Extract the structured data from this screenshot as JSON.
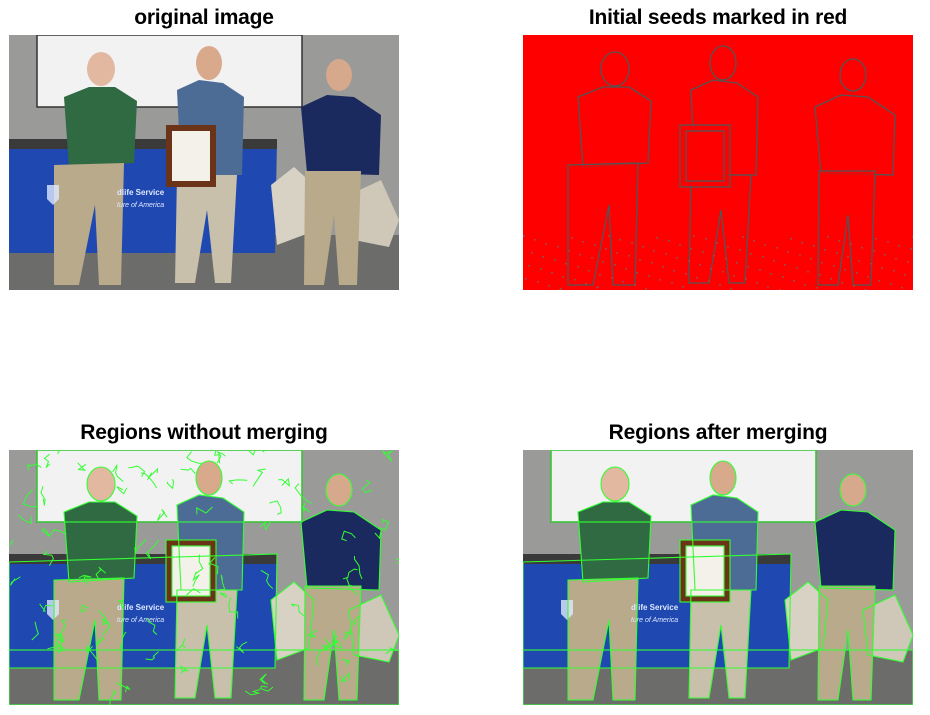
{
  "panels": [
    {
      "title": "original image"
    },
    {
      "title": "Initial seeds marked in red"
    },
    {
      "title": "Regions without merging"
    },
    {
      "title": "Regions after merging"
    }
  ],
  "scene": {
    "banner_text_1": "dlife Service",
    "banner_text_2": "ture of America"
  },
  "colors": {
    "seed_red": "#ff0000",
    "region_green": "#33ff33",
    "wall": "#9a9a98",
    "screen": "#f2f2f2",
    "tablecloth": "#1f48b0",
    "floor": "#6c6c6a",
    "shirt_green": "#2f6a43",
    "shirt_blue": "#4d6c95",
    "shirt_navy": "#1b2a5e",
    "khaki": "#b8aa8a"
  }
}
